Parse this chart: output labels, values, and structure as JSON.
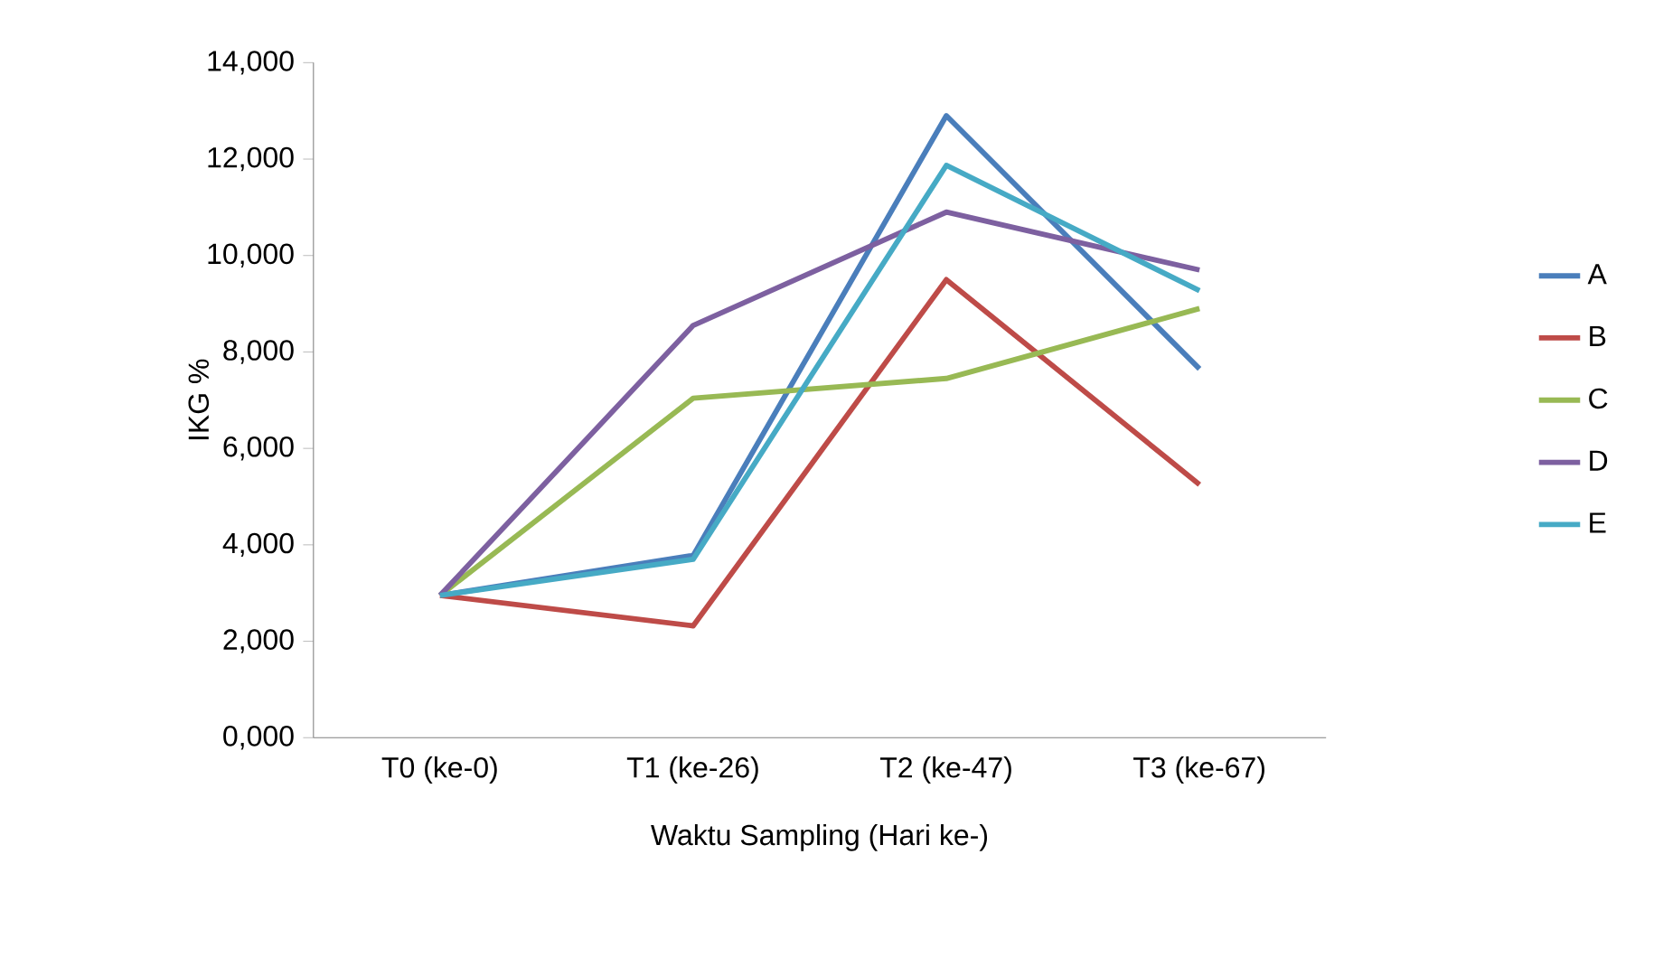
{
  "chart_data": {
    "type": "line",
    "xlabel": "Waktu Sampling (Hari ke-)",
    "ylabel": "IKG %",
    "categories": [
      "T0 (ke-0)",
      "T1 (ke-26)",
      "T2 (ke-47)",
      "T3 (ke-67)"
    ],
    "ylim": [
      0,
      14000
    ],
    "yticks": [
      {
        "value": 0,
        "label": "0,000"
      },
      {
        "value": 2000,
        "label": "2,000"
      },
      {
        "value": 4000,
        "label": "4,000"
      },
      {
        "value": 6000,
        "label": "6,000"
      },
      {
        "value": 8000,
        "label": "8,000"
      },
      {
        "value": 10000,
        "label": "10,000"
      },
      {
        "value": 12000,
        "label": "12,000"
      },
      {
        "value": 14000,
        "label": "14,000"
      }
    ],
    "series": [
      {
        "name": "A",
        "color": "#4a7ebb",
        "values": [
          2950,
          3780,
          12900,
          7650
        ]
      },
      {
        "name": "B",
        "color": "#be4b48",
        "values": [
          2950,
          2320,
          9500,
          5250
        ]
      },
      {
        "name": "C",
        "color": "#98b954",
        "values": [
          2950,
          7040,
          7450,
          8900
        ]
      },
      {
        "name": "D",
        "color": "#7d60a0",
        "values": [
          2950,
          8550,
          10900,
          9700
        ]
      },
      {
        "name": "E",
        "color": "#46aac5",
        "values": [
          2950,
          3700,
          11870,
          9270
        ]
      }
    ],
    "legend": "right",
    "marker": "none",
    "line_style": "solid",
    "grid": false
  }
}
